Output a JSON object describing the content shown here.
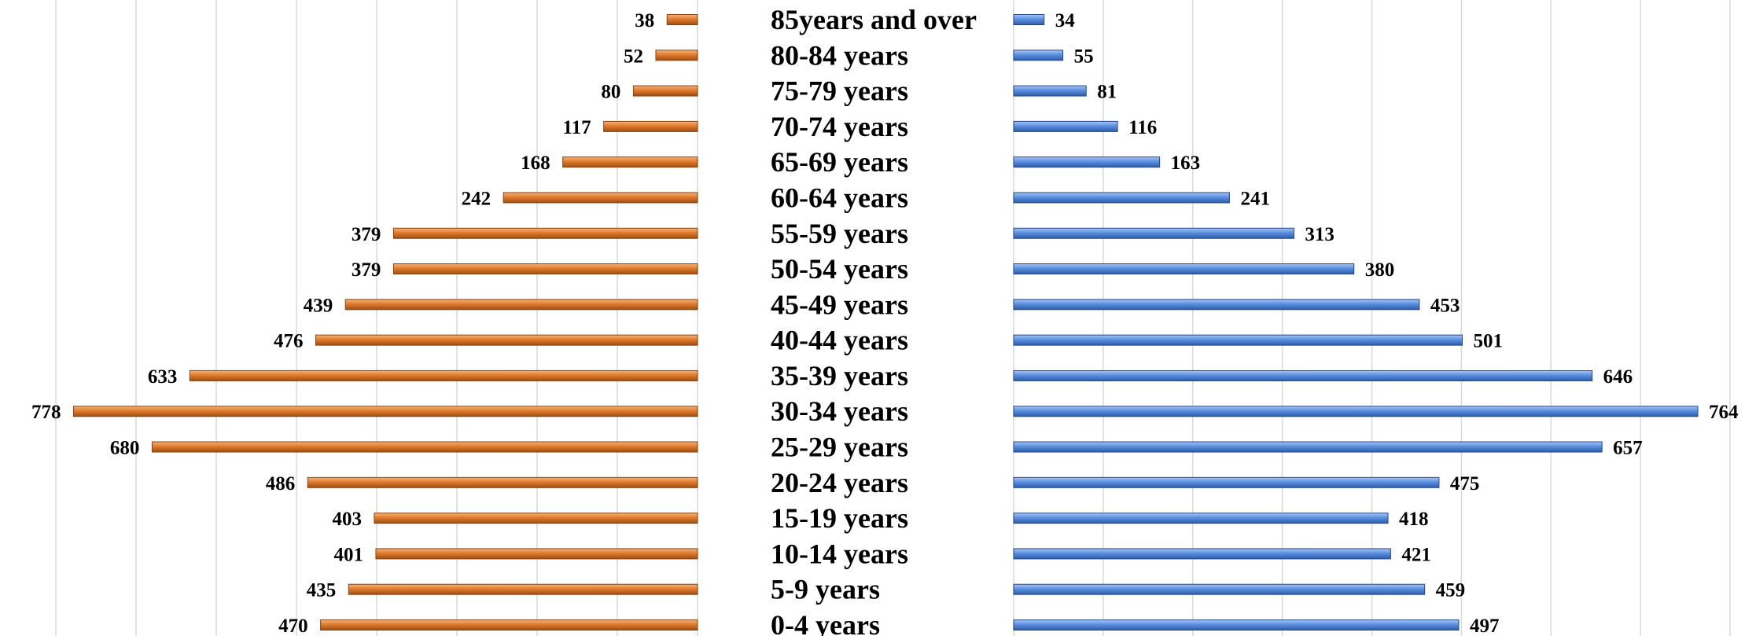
{
  "chart_data": {
    "type": "bar",
    "orientation": "horizontal",
    "layout": "population-pyramid",
    "grid": true,
    "categories": [
      "0-4 years",
      "5-9 years",
      "10-14 years",
      "15-19 years",
      "20-24 years",
      "25-29 years",
      "30-34 years",
      "35-39 years",
      "40-44 years",
      "45-49 years",
      "50-54 years",
      "55-59 years",
      "60-64 years",
      "65-69 years",
      "70-74 years",
      "75-79 years",
      "80-84 years",
      "85years and over"
    ],
    "series": [
      {
        "side": "left",
        "color": "#E07B2E",
        "values": [
          470,
          435,
          401,
          403,
          486,
          680,
          778,
          633,
          476,
          439,
          379,
          379,
          242,
          168,
          117,
          80,
          52,
          38
        ]
      },
      {
        "side": "right",
        "color": "#5B8FE0",
        "values": [
          497,
          459,
          421,
          418,
          475,
          657,
          764,
          646,
          501,
          453,
          380,
          313,
          241,
          163,
          116,
          81,
          55,
          34
        ]
      }
    ],
    "xlim": [
      0,
      800
    ],
    "data_labels": true
  }
}
